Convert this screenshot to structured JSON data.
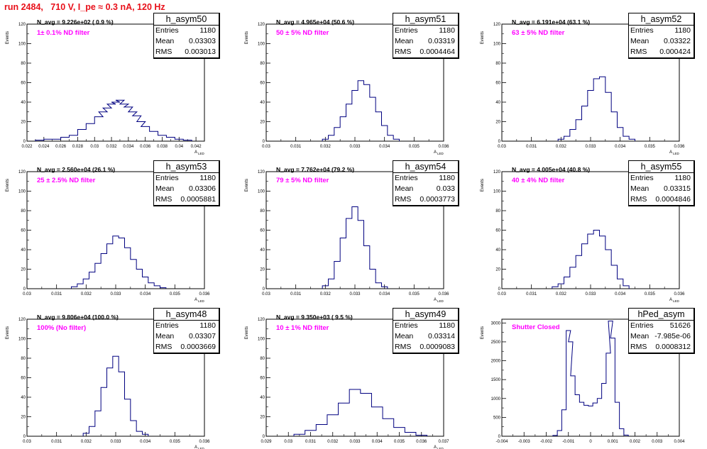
{
  "title": "run 2484,   710 V, I_pe ≈ 0.3 nA, 120 Hz",
  "stats_labels": {
    "entries": "Entries",
    "mean": "Mean",
    "rms": "RMS"
  },
  "colors": {
    "title": "#e8101a",
    "filter_label": "#ff00ff",
    "histogram": "#000080"
  },
  "chart_data": [
    {
      "type": "histogram",
      "name": "h_asym50",
      "entries": "1180",
      "mean": "0.03303",
      "rms": "0.003013",
      "n_avg": "N_avg = 9.226e+02 ( 0.9 %)",
      "filter": "1± 0.1% ND filter",
      "xlabel": "A_LED",
      "ylabel": "Events",
      "xlim": [
        0.022,
        0.043
      ],
      "ylim": [
        0,
        120
      ],
      "xticks": [
        "0.022",
        "0.024",
        "0.026",
        "0.028",
        "0.03",
        "0.032",
        "0.034",
        "0.036",
        "0.038",
        "0.04",
        "0.042"
      ],
      "yticks": [
        "0",
        "20",
        "40",
        "60",
        "80",
        "100",
        "120"
      ],
      "bins": [
        [
          0.0235,
          1
        ],
        [
          0.0245,
          2
        ],
        [
          0.0255,
          2
        ],
        [
          0.0265,
          4
        ],
        [
          0.0275,
          6
        ],
        [
          0.0285,
          12
        ],
        [
          0.0295,
          18
        ],
        [
          0.0305,
          25
        ],
        [
          0.031,
          30
        ],
        [
          0.0315,
          34
        ],
        [
          0.032,
          38
        ],
        [
          0.0325,
          40
        ],
        [
          0.033,
          42
        ],
        [
          0.0335,
          38
        ],
        [
          0.034,
          35
        ],
        [
          0.0345,
          30
        ],
        [
          0.035,
          26
        ],
        [
          0.0355,
          20
        ],
        [
          0.036,
          15
        ],
        [
          0.037,
          10
        ],
        [
          0.038,
          6
        ],
        [
          0.039,
          4
        ],
        [
          0.04,
          2
        ],
        [
          0.041,
          1
        ]
      ]
    },
    {
      "type": "histogram",
      "name": "h_asym51",
      "entries": "1180",
      "mean": "0.03319",
      "rms": "0.0004464",
      "n_avg": "N_avg = 4.965e+04 (50.6 %)",
      "filter": "50 ± 5% ND filter",
      "xlabel": "A_LED",
      "ylabel": "Events",
      "xlim": [
        0.03,
        0.036
      ],
      "ylim": [
        0,
        120
      ],
      "xticks": [
        "0.03",
        "0.031",
        "0.032",
        "0.033",
        "0.034",
        "0.035",
        "0.036"
      ],
      "yticks": [
        "0",
        "20",
        "40",
        "60",
        "80",
        "100",
        "120"
      ],
      "bins": [
        [
          0.032,
          2
        ],
        [
          0.0322,
          6
        ],
        [
          0.0324,
          14
        ],
        [
          0.0326,
          25
        ],
        [
          0.0328,
          38
        ],
        [
          0.033,
          52
        ],
        [
          0.0332,
          62
        ],
        [
          0.0334,
          58
        ],
        [
          0.0336,
          45
        ],
        [
          0.0338,
          30
        ],
        [
          0.034,
          16
        ],
        [
          0.0342,
          6
        ],
        [
          0.0344,
          2
        ]
      ]
    },
    {
      "type": "histogram",
      "name": "h_asym52",
      "entries": "1180",
      "mean": "0.03322",
      "rms": "0.000424",
      "n_avg": "N_avg = 6.191e+04 (63.1 %)",
      "filter": "63 ± 5% ND filter",
      "xlabel": "A_LED",
      "ylabel": "Events",
      "xlim": [
        0.03,
        0.036
      ],
      "ylim": [
        0,
        120
      ],
      "xticks": [
        "0.03",
        "0.031",
        "0.032",
        "0.033",
        "0.034",
        "0.035",
        "0.036"
      ],
      "yticks": [
        "0",
        "20",
        "40",
        "60",
        "80",
        "100",
        "120"
      ],
      "bins": [
        [
          0.032,
          2
        ],
        [
          0.0322,
          5
        ],
        [
          0.0324,
          12
        ],
        [
          0.0326,
          22
        ],
        [
          0.0328,
          36
        ],
        [
          0.033,
          52
        ],
        [
          0.0332,
          64
        ],
        [
          0.0334,
          66
        ],
        [
          0.0336,
          50
        ],
        [
          0.0338,
          30
        ],
        [
          0.034,
          14
        ],
        [
          0.0342,
          5
        ],
        [
          0.0344,
          2
        ]
      ]
    },
    {
      "type": "histogram",
      "name": "h_asym53",
      "entries": "1180",
      "mean": "0.03306",
      "rms": "0.0005881",
      "n_avg": "N_avg = 2.560e+04 (26.1 %)",
      "filter": "25 ± 2.5% ND filter",
      "xlabel": "A_LED",
      "ylabel": "Events",
      "xlim": [
        0.03,
        0.036
      ],
      "ylim": [
        0,
        120
      ],
      "xticks": [
        "0.03",
        "0.031",
        "0.032",
        "0.033",
        "0.034",
        "0.035",
        "0.036"
      ],
      "yticks": [
        "0",
        "20",
        "40",
        "60",
        "80",
        "100",
        "120"
      ],
      "bins": [
        [
          0.0316,
          2
        ],
        [
          0.0318,
          5
        ],
        [
          0.032,
          10
        ],
        [
          0.0322,
          17
        ],
        [
          0.0324,
          26
        ],
        [
          0.0326,
          36
        ],
        [
          0.0328,
          46
        ],
        [
          0.033,
          54
        ],
        [
          0.0332,
          52
        ],
        [
          0.0334,
          42
        ],
        [
          0.0336,
          30
        ],
        [
          0.0338,
          20
        ],
        [
          0.034,
          12
        ],
        [
          0.0342,
          6
        ],
        [
          0.0344,
          3
        ],
        [
          0.0346,
          1
        ]
      ]
    },
    {
      "type": "histogram",
      "name": "h_asym54",
      "entries": "1180",
      "mean": "0.033",
      "rms": "0.0003773",
      "n_avg": "N_avg = 7.762e+04 (79.2 %)",
      "filter": "79 ± 5% ND filter",
      "xlabel": "A_LED",
      "ylabel": "Events",
      "xlim": [
        0.03,
        0.036
      ],
      "ylim": [
        0,
        120
      ],
      "xticks": [
        "0.03",
        "0.031",
        "0.032",
        "0.033",
        "0.034",
        "0.035",
        "0.036"
      ],
      "yticks": [
        "0",
        "20",
        "40",
        "60",
        "80",
        "100",
        "120"
      ],
      "bins": [
        [
          0.032,
          3
        ],
        [
          0.0322,
          10
        ],
        [
          0.0324,
          28
        ],
        [
          0.0326,
          52
        ],
        [
          0.0328,
          72
        ],
        [
          0.033,
          84
        ],
        [
          0.0332,
          70
        ],
        [
          0.0334,
          44
        ],
        [
          0.0336,
          20
        ],
        [
          0.0338,
          6
        ],
        [
          0.034,
          2
        ]
      ]
    },
    {
      "type": "histogram",
      "name": "h_asym55",
      "entries": "1180",
      "mean": "0.03315",
      "rms": "0.0004846",
      "n_avg": "N_avg = 4.005e+04 (40.8 %)",
      "filter": "40 ± 4% ND filter",
      "xlabel": "A_LED",
      "ylabel": "Events",
      "xlim": [
        0.03,
        0.036
      ],
      "ylim": [
        0,
        120
      ],
      "xticks": [
        "0.03",
        "0.031",
        "0.032",
        "0.033",
        "0.034",
        "0.035",
        "0.036"
      ],
      "yticks": [
        "0",
        "20",
        "40",
        "60",
        "80",
        "100",
        "120"
      ],
      "bins": [
        [
          0.0318,
          2
        ],
        [
          0.032,
          5
        ],
        [
          0.0322,
          12
        ],
        [
          0.0324,
          22
        ],
        [
          0.0326,
          34
        ],
        [
          0.0328,
          46
        ],
        [
          0.033,
          56
        ],
        [
          0.0332,
          60
        ],
        [
          0.0334,
          54
        ],
        [
          0.0336,
          40
        ],
        [
          0.0338,
          24
        ],
        [
          0.034,
          10
        ],
        [
          0.0342,
          3
        ]
      ]
    },
    {
      "type": "histogram",
      "name": "h_asym48",
      "entries": "1180",
      "mean": "0.03307",
      "rms": "0.0003669",
      "n_avg": "N_avg = 9.806e+04 (100.0 %)",
      "filter": "100% (No filter)",
      "xlabel": "A_LED",
      "ylabel": "Events",
      "xlim": [
        0.03,
        0.036
      ],
      "ylim": [
        0,
        120
      ],
      "xticks": [
        "0.03",
        "0.031",
        "0.032",
        "0.033",
        "0.034",
        "0.035",
        "0.036"
      ],
      "yticks": [
        "0",
        "20",
        "40",
        "60",
        "80",
        "100",
        "120"
      ],
      "bins": [
        [
          0.032,
          3
        ],
        [
          0.0322,
          10
        ],
        [
          0.0324,
          26
        ],
        [
          0.0326,
          50
        ],
        [
          0.0328,
          70
        ],
        [
          0.033,
          82
        ],
        [
          0.0332,
          66
        ],
        [
          0.0334,
          38
        ],
        [
          0.0336,
          16
        ],
        [
          0.0338,
          5
        ],
        [
          0.034,
          2
        ]
      ]
    },
    {
      "type": "histogram",
      "name": "h_asym49",
      "entries": "1180",
      "mean": "0.03314",
      "rms": "0.0009083",
      "n_avg": "N_avg = 9.350e+03 ( 9.5 %)",
      "filter": "10 ± 1% ND filter",
      "xlabel": "A_LED",
      "ylabel": "Events",
      "xlim": [
        0.029,
        0.037
      ],
      "ylim": [
        0,
        120
      ],
      "xticks": [
        "0.029",
        "0.03",
        "0.031",
        "0.032",
        "0.033",
        "0.034",
        "0.035",
        "0.036",
        "0.037"
      ],
      "yticks": [
        "0",
        "20",
        "40",
        "60",
        "80",
        "100",
        "120"
      ],
      "bins": [
        [
          0.0305,
          2
        ],
        [
          0.031,
          6
        ],
        [
          0.0315,
          12
        ],
        [
          0.032,
          22
        ],
        [
          0.0325,
          34
        ],
        [
          0.033,
          48
        ],
        [
          0.0335,
          44
        ],
        [
          0.034,
          30
        ],
        [
          0.0345,
          18
        ],
        [
          0.035,
          9
        ],
        [
          0.0355,
          4
        ],
        [
          0.036,
          1
        ]
      ]
    },
    {
      "type": "histogram",
      "name": "hPed_asym",
      "entries": "51626",
      "mean": "-7.985e-06",
      "rms": "0.0008312",
      "n_avg": "",
      "filter": "Shutter Closed",
      "xlabel": "",
      "ylabel": "Events",
      "xlim": [
        -0.004,
        0.004
      ],
      "ylim": [
        0,
        3100
      ],
      "xticks": [
        "-0.004",
        "-0.003",
        "-0.002",
        "-0.001",
        "0",
        "0.001",
        "0.002",
        "0.003",
        "0.004"
      ],
      "yticks": [
        "0",
        "500",
        "1000",
        "1500",
        "2000",
        "2500",
        "3000"
      ],
      "bins": [
        [
          -0.0016,
          20
        ],
        [
          -0.0014,
          150
        ],
        [
          -0.0012,
          700
        ],
        [
          -0.001,
          2800
        ],
        [
          -0.0009,
          2500
        ],
        [
          -0.0008,
          1600
        ],
        [
          -0.0006,
          1100
        ],
        [
          -0.0004,
          900
        ],
        [
          -0.0002,
          820
        ],
        [
          0.0,
          800
        ],
        [
          0.0002,
          880
        ],
        [
          0.0004,
          1000
        ],
        [
          0.0006,
          1400
        ],
        [
          0.0008,
          2200
        ],
        [
          0.0009,
          3050
        ],
        [
          0.001,
          2600
        ],
        [
          0.0012,
          900
        ],
        [
          0.0014,
          200
        ],
        [
          0.0016,
          30
        ]
      ]
    }
  ]
}
